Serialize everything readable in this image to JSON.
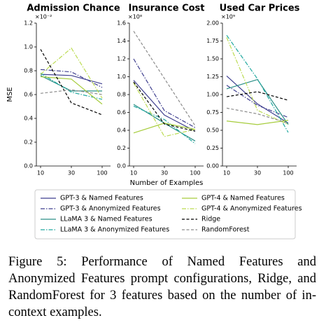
{
  "chart_data": [
    {
      "type": "line",
      "title": "Admission Chance",
      "scale_label": "×10⁻²",
      "ylabel": "MSE",
      "categories": [
        "10",
        "30",
        "100"
      ],
      "ylim": [
        0,
        1.2
      ],
      "yticks": [
        {
          "value": 0,
          "label": "0.0"
        },
        0.2,
        0.4,
        0.6,
        0.8,
        {
          "value": 1,
          "label": "1.0"
        },
        1.2
      ],
      "series": [
        {
          "name": "GPT-3 & Named Features",
          "color": "#3f3f8f",
          "dash": "solid",
          "values": [
            0.77,
            0.76,
            0.69
          ]
        },
        {
          "name": "GPT-3 & Anonymized Features",
          "color": "#3f3f8f",
          "dash": "dashdot",
          "values": [
            0.81,
            0.79,
            0.66
          ]
        },
        {
          "name": "LLaMA 3 & Named Features",
          "color": "#2a8f86",
          "dash": "solid",
          "values": [
            0.76,
            0.63,
            0.63
          ]
        },
        {
          "name": "LLaMA 3 & Anonymized Features",
          "color": "#22a9a0",
          "dash": "dashdot",
          "values": [
            0.78,
            0.62,
            0.56
          ]
        },
        {
          "name": "GPT-4 & Named Features",
          "color": "#a6cc3c",
          "dash": "solid",
          "values": [
            0.75,
            0.73,
            0.52
          ]
        },
        {
          "name": "GPT-4 & Anonymized Features",
          "color": "#bcdc52",
          "dash": "dashdot",
          "values": [
            0.77,
            0.99,
            0.57
          ]
        },
        {
          "name": "Ridge",
          "color": "#000000",
          "dash": "dashed",
          "values": [
            0.98,
            0.53,
            0.43
          ]
        },
        {
          "name": "RandomForest",
          "color": "#8c8c8c",
          "dash": "dashed",
          "values": [
            0.61,
            0.64,
            0.6
          ]
        }
      ]
    },
    {
      "type": "line",
      "title": "Insurance Cost",
      "scale_label": "×10⁸",
      "xlabel": "Number of Examples",
      "categories": [
        "10",
        "30",
        "100"
      ],
      "ylim": [
        0,
        1.6
      ],
      "yticks": [
        {
          "value": 0,
          "label": "0.0"
        },
        0.2,
        0.4,
        0.6,
        0.8,
        {
          "value": 1,
          "label": "1.0"
        },
        1.2,
        1.4,
        1.6
      ],
      "series": [
        {
          "values": [
            0.96,
            0.57,
            0.39
          ]
        },
        {
          "values": [
            1.2,
            0.62,
            0.43
          ]
        },
        {
          "values": [
            0.69,
            0.48,
            0.28
          ]
        },
        {
          "values": [
            0.67,
            0.52,
            0.25
          ]
        },
        {
          "values": [
            0.37,
            0.48,
            0.41
          ]
        },
        {
          "values": [
            0.93,
            0.33,
            0.41
          ]
        },
        {
          "values": [
            0.94,
            0.47,
            0.39
          ]
        },
        {
          "values": [
            1.51,
            0.98,
            0.45
          ]
        }
      ]
    },
    {
      "type": "line",
      "title": "Used Car Prices",
      "scale_label": "×10⁹",
      "categories": [
        "10",
        "30",
        "100"
      ],
      "ylim": [
        0,
        2
      ],
      "yticks": [
        {
          "value": 0,
          "label": "0.00"
        },
        0.25,
        {
          "value": 0.5,
          "label": "0.50"
        },
        0.75,
        {
          "value": 1,
          "label": "1.00"
        },
        1.25,
        {
          "value": 1.5,
          "label": "1.50"
        },
        1.75,
        {
          "value": 2,
          "label": "2.00"
        }
      ],
      "series": [
        {
          "values": [
            1.26,
            0.87,
            0.6
          ]
        },
        {
          "values": [
            1.13,
            0.85,
            0.68
          ]
        },
        {
          "values": [
            1.08,
            1.21,
            0.58
          ]
        },
        {
          "values": [
            1.83,
            1.22,
            0.47
          ]
        },
        {
          "values": [
            0.63,
            0.58,
            0.64
          ]
        },
        {
          "values": [
            1.8,
            0.78,
            0.58
          ]
        },
        {
          "values": [
            0.97,
            1.04,
            0.92
          ]
        },
        {
          "values": [
            0.81,
            0.73,
            0.6
          ]
        }
      ]
    }
  ],
  "caption": "Figure 5: Performance of Named Features and Anonymized Features prompt configurations, Ridge, and RandomForest for 3 features based on the number of in-context examples."
}
